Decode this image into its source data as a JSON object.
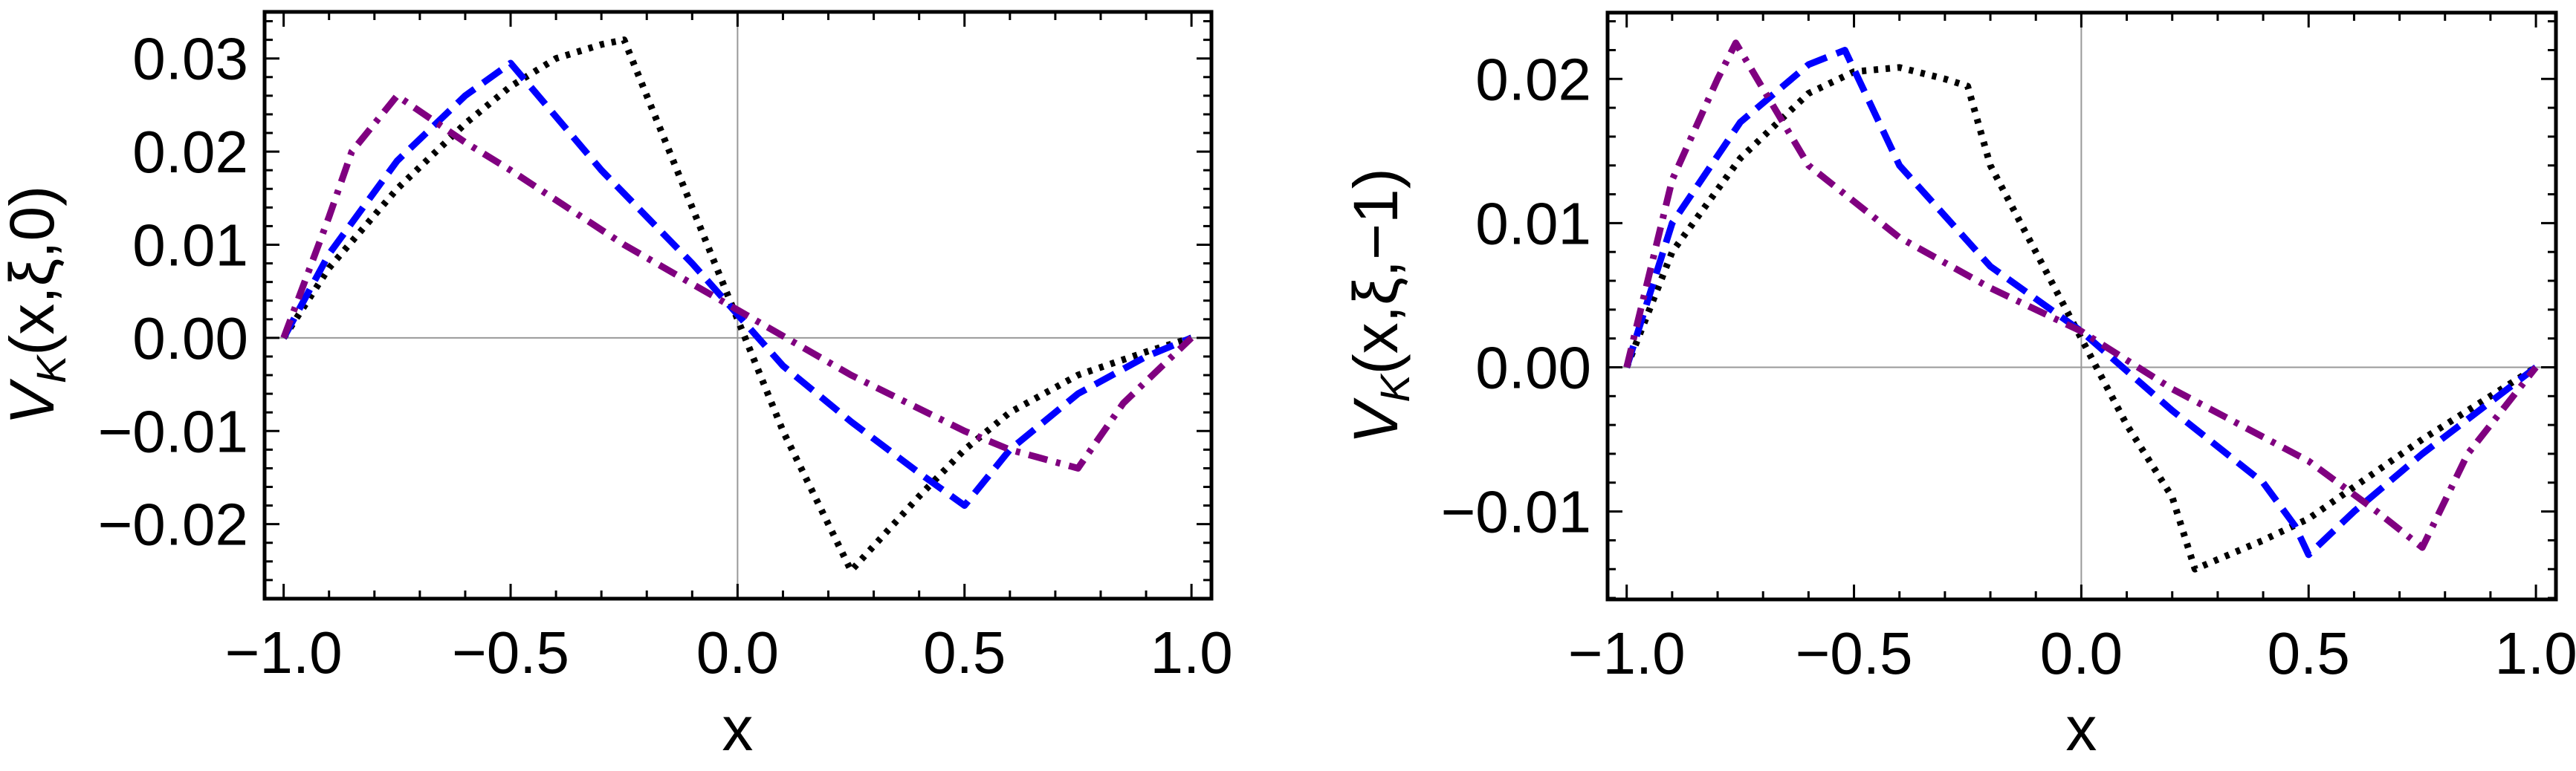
{
  "chart_data": [
    {
      "type": "line",
      "title": "",
      "xlabel": "x",
      "ylabel": {
        "main": "V",
        "sub": "K",
        "args": "(x,ξ,0)"
      },
      "xlim": [
        -1.042,
        1.044
      ],
      "ylim": [
        -0.028,
        0.035
      ],
      "xticks": [
        {
          "v": -1,
          "label": "−1.0"
        },
        {
          "v": -0.5,
          "label": "−0.5"
        },
        {
          "v": 0,
          "label": "0.0"
        },
        {
          "v": 0.5,
          "label": "0.5"
        },
        {
          "v": 1,
          "label": "1.0"
        }
      ],
      "yticks": [
        {
          "v": 0.03,
          "label": "0.03"
        },
        {
          "v": 0.02,
          "label": "0.02"
        },
        {
          "v": 0.01,
          "label": "0.01"
        },
        {
          "v": 0,
          "label": "0.00"
        },
        {
          "v": -0.01,
          "label": "−0.01"
        },
        {
          "v": -0.02,
          "label": "−0.02"
        }
      ],
      "grid": false,
      "series": [
        {
          "name": "black-dotted",
          "color": "#000000",
          "style": "dotted",
          "x": [
            -1,
            -0.9,
            -0.75,
            -0.6,
            -0.5,
            -0.4,
            -0.3,
            -0.25,
            -0.15,
            0,
            0.1,
            0.25,
            0.4,
            0.5,
            0.6,
            0.75,
            0.9,
            1
          ],
          "y": [
            0,
            0.0075,
            0.016,
            0.023,
            0.027,
            0.03,
            0.0315,
            0.032,
            0.02,
            0.002,
            -0.01,
            -0.025,
            -0.017,
            -0.012,
            -0.008,
            -0.004,
            -0.0015,
            0
          ]
        },
        {
          "name": "blue-dashed",
          "color": "#0000ff",
          "style": "dashed",
          "x": [
            -1,
            -0.9,
            -0.75,
            -0.6,
            -0.5,
            -0.3,
            -0.1,
            0,
            0.1,
            0.25,
            0.4,
            0.5,
            0.6,
            0.75,
            0.9,
            1
          ],
          "y": [
            0,
            0.009,
            0.019,
            0.026,
            0.0295,
            0.018,
            0.008,
            0.0025,
            -0.003,
            -0.009,
            -0.0145,
            -0.018,
            -0.012,
            -0.006,
            -0.002,
            0
          ]
        },
        {
          "name": "purple-dashdot",
          "color": "#800080",
          "style": "dashdot",
          "x": [
            -1,
            -0.9,
            -0.85,
            -0.75,
            -0.6,
            -0.5,
            -0.25,
            0,
            0.25,
            0.5,
            0.6,
            0.75,
            0.85,
            1
          ],
          "y": [
            0,
            0.013,
            0.02,
            0.026,
            0.021,
            0.018,
            0.01,
            0.003,
            -0.004,
            -0.01,
            -0.012,
            -0.014,
            -0.007,
            0
          ]
        }
      ]
    },
    {
      "type": "line",
      "title": "",
      "xlabel": "x",
      "ylabel": {
        "main": "V",
        "sub": "K",
        "args": "(x,ξ,−1)"
      },
      "xlim": [
        -1.042,
        1.044
      ],
      "ylim": [
        -0.0161,
        0.0246
      ],
      "xticks": [
        {
          "v": -1,
          "label": "−1.0"
        },
        {
          "v": -0.5,
          "label": "−0.5"
        },
        {
          "v": 0,
          "label": "0.0"
        },
        {
          "v": 0.5,
          "label": "0.5"
        },
        {
          "v": 1,
          "label": "1.0"
        }
      ],
      "yticks": [
        {
          "v": 0.02,
          "label": "0.02"
        },
        {
          "v": 0.01,
          "label": "0.01"
        },
        {
          "v": 0,
          "label": "0.00"
        },
        {
          "v": -0.01,
          "label": "−0.01"
        }
      ],
      "grid": false,
      "series": [
        {
          "name": "black-dotted",
          "color": "#000000",
          "style": "dotted",
          "x": [
            -1,
            -0.9,
            -0.75,
            -0.6,
            -0.5,
            -0.4,
            -0.3,
            -0.25,
            -0.2,
            -0.1,
            0,
            0.1,
            0.2,
            0.25,
            0.4,
            0.5,
            0.75,
            0.9,
            1
          ],
          "y": [
            0,
            0.008,
            0.0145,
            0.019,
            0.0205,
            0.0208,
            0.02,
            0.0195,
            0.014,
            0.008,
            0.002,
            -0.004,
            -0.009,
            -0.014,
            -0.012,
            -0.0105,
            -0.005,
            -0.002,
            0
          ]
        },
        {
          "name": "blue-dashed",
          "color": "#0000ff",
          "style": "dashed",
          "x": [
            -1,
            -0.9,
            -0.75,
            -0.6,
            -0.52,
            -0.4,
            -0.2,
            0,
            0.2,
            0.4,
            0.47,
            0.5,
            0.6,
            0.75,
            1
          ],
          "y": [
            0,
            0.01,
            0.017,
            0.021,
            0.022,
            0.014,
            0.007,
            0.0025,
            -0.003,
            -0.008,
            -0.011,
            -0.013,
            -0.01,
            -0.006,
            0
          ]
        },
        {
          "name": "purple-dashdot",
          "color": "#800080",
          "style": "dashdot",
          "x": [
            -1,
            -0.9,
            -0.8,
            -0.76,
            -0.6,
            -0.4,
            -0.2,
            0,
            0.2,
            0.5,
            0.65,
            0.75,
            0.85,
            1
          ],
          "y": [
            0,
            0.013,
            0.02,
            0.0225,
            0.014,
            0.009,
            0.0055,
            0.0025,
            -0.0015,
            -0.0065,
            -0.01,
            -0.0125,
            -0.006,
            0
          ]
        }
      ]
    }
  ]
}
